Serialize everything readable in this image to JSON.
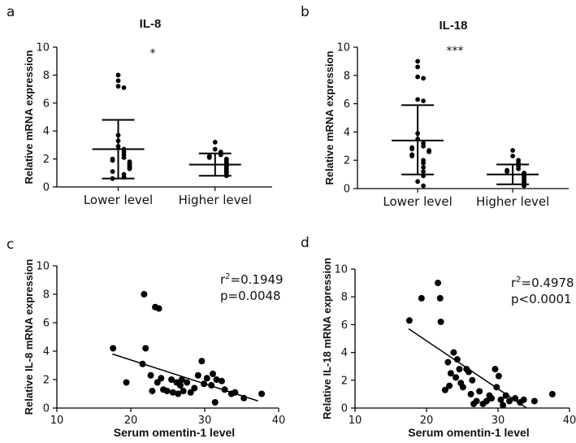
{
  "chart_data": [
    {
      "panel": "a",
      "type": "scatter",
      "title": "IL-8",
      "ylabel": "Relative mRNA expression",
      "categories": [
        "Lower level",
        "Higher level"
      ],
      "ylim": [
        0,
        10
      ],
      "yticks": [
        0,
        2,
        4,
        6,
        8,
        10
      ],
      "significance": "*",
      "groups": [
        {
          "mean": 2.7,
          "sd_low": 0.6,
          "sd_high": 4.8,
          "values": [
            8.0,
            7.6,
            7.2,
            7.1,
            3.7,
            3.3,
            2.9,
            2.7,
            2.5,
            2.3,
            2.1,
            2.0,
            1.9,
            1.8,
            1.7,
            1.6,
            1.5,
            1.4,
            1.3,
            1.1,
            0.9,
            0.7,
            0.6
          ]
        },
        {
          "mean": 1.6,
          "sd_low": 0.8,
          "sd_high": 2.4,
          "values": [
            3.2,
            2.7,
            2.5,
            2.3,
            2.2,
            2.1,
            2.0,
            1.9,
            1.8,
            1.7,
            1.6,
            1.5,
            1.4,
            1.3,
            1.2,
            1.1,
            1.0,
            0.9,
            0.8
          ]
        }
      ]
    },
    {
      "panel": "b",
      "type": "scatter",
      "title": "IL-18",
      "ylabel": "Relative mRNA expression",
      "categories": [
        "Lower level",
        "Higher level"
      ],
      "ylim": [
        0,
        10
      ],
      "yticks": [
        0,
        2,
        4,
        6,
        8,
        10
      ],
      "significance": "***",
      "groups": [
        {
          "mean": 3.4,
          "sd_low": 1.0,
          "sd_high": 5.9,
          "values": [
            9.0,
            8.6,
            7.9,
            7.8,
            6.3,
            6.2,
            3.9,
            3.5,
            3.2,
            3.0,
            2.9,
            2.8,
            2.7,
            2.6,
            2.4,
            2.3,
            2.0,
            1.8,
            1.5,
            1.2,
            0.9,
            0.5,
            0.2
          ]
        },
        {
          "mean": 1.0,
          "sd_low": 0.3,
          "sd_high": 1.7,
          "values": [
            2.7,
            2.3,
            2.0,
            1.8,
            1.6,
            1.4,
            1.3,
            1.2,
            1.1,
            1.0,
            0.9,
            0.8,
            0.7,
            0.6,
            0.5,
            0.4,
            0.3,
            0.2
          ]
        }
      ]
    },
    {
      "panel": "c",
      "type": "scatter",
      "ylabel": "Relative IL-8 mRNA expression",
      "xlabel": "Serum omentin-1 level",
      "xlim": [
        10,
        40
      ],
      "ylim": [
        0,
        10
      ],
      "xticks": [
        10,
        20,
        30,
        40
      ],
      "yticks": [
        0,
        2,
        4,
        6,
        8,
        10
      ],
      "annotation_r": "r",
      "annotation_r_sup": "2",
      "annotation_r_value": "=0.1949",
      "annotation_p": "p=0.0048",
      "regression": {
        "x": [
          17.5,
          37.2
        ],
        "y": [
          3.8,
          0.5
        ]
      },
      "points": [
        [
          17.6,
          4.2
        ],
        [
          19.4,
          1.8
        ],
        [
          21.8,
          8.0
        ],
        [
          22.0,
          4.2
        ],
        [
          21.6,
          3.1
        ],
        [
          22.7,
          2.3
        ],
        [
          22.9,
          1.2
        ],
        [
          23.3,
          7.1
        ],
        [
          23.8,
          7.0
        ],
        [
          23.6,
          1.8
        ],
        [
          24.1,
          2.1
        ],
        [
          24.4,
          1.3
        ],
        [
          24.9,
          1.2
        ],
        [
          25.5,
          2.0
        ],
        [
          25.7,
          1.1
        ],
        [
          26.2,
          1.8
        ],
        [
          26.4,
          1.0
        ],
        [
          26.7,
          1.6
        ],
        [
          26.9,
          2.0
        ],
        [
          27.1,
          1.2
        ],
        [
          27.6,
          1.8
        ],
        [
          28.1,
          1.1
        ],
        [
          28.6,
          1.4
        ],
        [
          29.1,
          2.3
        ],
        [
          29.6,
          3.3
        ],
        [
          29.9,
          1.7
        ],
        [
          30.3,
          2.1
        ],
        [
          30.9,
          1.6
        ],
        [
          31.1,
          2.4
        ],
        [
          31.4,
          0.4
        ],
        [
          31.6,
          2.0
        ],
        [
          32.3,
          1.9
        ],
        [
          32.7,
          1.3
        ],
        [
          33.6,
          1.0
        ],
        [
          34.1,
          1.1
        ],
        [
          35.3,
          0.7
        ],
        [
          37.7,
          1.0
        ]
      ]
    },
    {
      "panel": "d",
      "type": "scatter",
      "ylabel": "Relative IL-18 mRNA expression",
      "xlabel": "Serum omentin-1 level",
      "xlim": [
        10,
        40
      ],
      "ylim": [
        0,
        10
      ],
      "xticks": [
        10,
        20,
        30,
        40
      ],
      "yticks": [
        0,
        2,
        4,
        6,
        8,
        10
      ],
      "annotation_r": "r",
      "annotation_r_sup": "2",
      "annotation_r_value": "=0.4978",
      "annotation_p": "p<0.0001",
      "regression": {
        "x": [
          17.5,
          34.0
        ],
        "y": [
          5.7,
          0.0
        ]
      },
      "points": [
        [
          17.6,
          6.3
        ],
        [
          19.3,
          7.9
        ],
        [
          21.6,
          9.0
        ],
        [
          21.9,
          7.9
        ],
        [
          22.0,
          6.2
        ],
        [
          22.6,
          1.3
        ],
        [
          23.0,
          3.3
        ],
        [
          23.2,
          1.6
        ],
        [
          23.4,
          2.5
        ],
        [
          23.8,
          4.0
        ],
        [
          24.1,
          2.2
        ],
        [
          24.3,
          3.5
        ],
        [
          24.6,
          2.8
        ],
        [
          24.8,
          1.8
        ],
        [
          25.1,
          1.5
        ],
        [
          25.6,
          2.8
        ],
        [
          25.9,
          2.6
        ],
        [
          26.2,
          1.0
        ],
        [
          26.4,
          2.0
        ],
        [
          26.6,
          0.3
        ],
        [
          27.0,
          0.5
        ],
        [
          27.4,
          1.2
        ],
        [
          27.9,
          0.3
        ],
        [
          28.4,
          0.5
        ],
        [
          28.8,
          0.9
        ],
        [
          29.1,
          0.7
        ],
        [
          29.6,
          2.8
        ],
        [
          29.8,
          1.5
        ],
        [
          30.1,
          2.3
        ],
        [
          30.4,
          0.6
        ],
        [
          30.7,
          0.2
        ],
        [
          31.1,
          0.9
        ],
        [
          31.6,
          0.5
        ],
        [
          32.4,
          0.7
        ],
        [
          33.1,
          0.4
        ],
        [
          33.6,
          0.6
        ],
        [
          35.1,
          0.5
        ],
        [
          37.6,
          1.0
        ]
      ]
    }
  ]
}
